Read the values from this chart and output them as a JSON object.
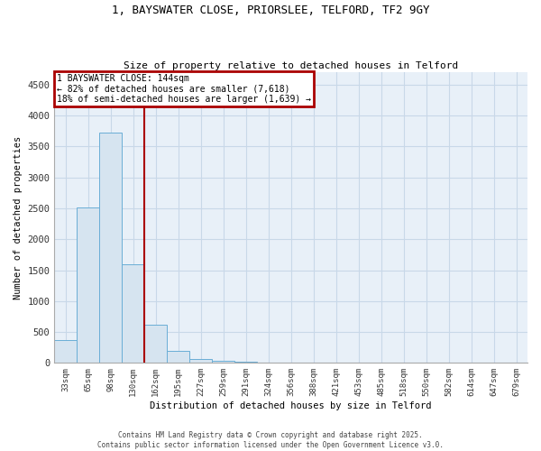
{
  "title_line1": "1, BAYSWATER CLOSE, PRIORSLEE, TELFORD, TF2 9GY",
  "title_line2": "Size of property relative to detached houses in Telford",
  "xlabel": "Distribution of detached houses by size in Telford",
  "ylabel": "Number of detached properties",
  "categories": [
    "33sqm",
    "65sqm",
    "98sqm",
    "130sqm",
    "162sqm",
    "195sqm",
    "227sqm",
    "259sqm",
    "291sqm",
    "324sqm",
    "356sqm",
    "388sqm",
    "421sqm",
    "453sqm",
    "485sqm",
    "518sqm",
    "550sqm",
    "582sqm",
    "614sqm",
    "647sqm",
    "679sqm"
  ],
  "values": [
    370,
    2510,
    3730,
    1590,
    620,
    200,
    70,
    30,
    15,
    8,
    5,
    3,
    2,
    1,
    1,
    0,
    0,
    0,
    0,
    0,
    0
  ],
  "bar_color": "#d6e4f0",
  "bar_edgecolor": "#6aaed6",
  "property_bin_index": 3,
  "annotation_title": "1 BAYSWATER CLOSE: 144sqm",
  "annotation_line2": "← 82% of detached houses are smaller (7,618)",
  "annotation_line3": "18% of semi-detached houses are larger (1,639) →",
  "annotation_box_color": "#aa0000",
  "vline_color": "#aa0000",
  "ylim": [
    0,
    4700
  ],
  "ytick_values": [
    0,
    500,
    1000,
    1500,
    2000,
    2500,
    3000,
    3500,
    4000,
    4500
  ],
  "grid_color": "#c8d8e8",
  "bg_color": "#e8f0f8",
  "footer_line1": "Contains HM Land Registry data © Crown copyright and database right 2025.",
  "footer_line2": "Contains public sector information licensed under the Open Government Licence v3.0.",
  "font_family": "DejaVu Sans Mono"
}
